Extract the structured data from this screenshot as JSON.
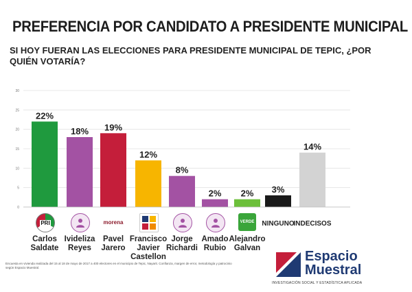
{
  "header": {
    "title": "PREFERENCIA POR CANDIDATO A PRESIDENTE MUNICIPAL",
    "question": "SI HOY FUERAN LAS ELECCIONES PARA PRESIDENTE MUNICIPAL DE TEPIC, ¿POR QUIÉN VOTARÍA?"
  },
  "chart_data": {
    "type": "bar",
    "title": "PREFERENCIA POR CANDIDATO A PRESIDENTE MUNICIPAL",
    "ylim": [
      0,
      30
    ],
    "yticks": [
      "0",
      "5",
      "10",
      "15",
      "20",
      "25",
      "30"
    ],
    "grid": true,
    "categories": [
      "Carlos Saldate",
      "Ivideliza Reyes",
      "Pavel Jarero",
      "Francisco Javier Castellon",
      "Jorge Richardi",
      "Amado Rubio",
      "Alejandro Galvan",
      "NINGUNO",
      "INDECISOS"
    ],
    "values": [
      22,
      18,
      19,
      12,
      8,
      2,
      2,
      3,
      14
    ],
    "value_labels": [
      "22%",
      "18%",
      "19%",
      "12%",
      "8%",
      "2%",
      "2%",
      "3%",
      "14%"
    ],
    "colors": [
      "#1f9a3e",
      "#a352a3",
      "#c41e3a",
      "#f7b500",
      "#a352a3",
      "#a352a3",
      "#6cbf3a",
      "#1a1a1a",
      "#d3d3d3"
    ]
  },
  "candidates": [
    {
      "line1": "Carlos",
      "line2": "Saldate",
      "line3": "",
      "logo": "PRI",
      "logo_color": "#c41e3a"
    },
    {
      "line1": "Ivideliza",
      "line2": "Reyes",
      "line3": "",
      "logo": "person-icon",
      "logo_color": "#a352a3"
    },
    {
      "line1": "Pavel",
      "line2": "Jarero",
      "line3": "",
      "logo": "morena",
      "logo_color": "#8b1a2b"
    },
    {
      "line1": "Francisco",
      "line2": "Javier",
      "line3": "Castellon",
      "logo": "coalition-icon",
      "logo_color": "#f7b500"
    },
    {
      "line1": "Jorge",
      "line2": "Richardi",
      "line3": "",
      "logo": "person-icon",
      "logo_color": "#a352a3"
    },
    {
      "line1": "Amado",
      "line2": "Rubio",
      "line3": "",
      "logo": "person-icon",
      "logo_color": "#a352a3"
    },
    {
      "line1": "Alejandro",
      "line2": "Galvan",
      "line3": "",
      "logo": "VERDE",
      "logo_color": "#3aa53a"
    }
  ],
  "extra_labels": {
    "ninguno": "NINGUNO",
    "indecisos": "INDECISOS"
  },
  "footnote": "Encuesta en vivienda realizada del 15 al 18 de mayo de 2017 a 400 electores en el municipio de Tepic, Nayarit. Confianza, margen de error, metodología y patrocinio según Espacio Muestral.",
  "brand": {
    "name_line1": "Espacio",
    "name_line2": "Muestral",
    "tagline": "INVESTIGACIÓN SOCIAL Y ESTADÍSTICA APLICADA"
  }
}
